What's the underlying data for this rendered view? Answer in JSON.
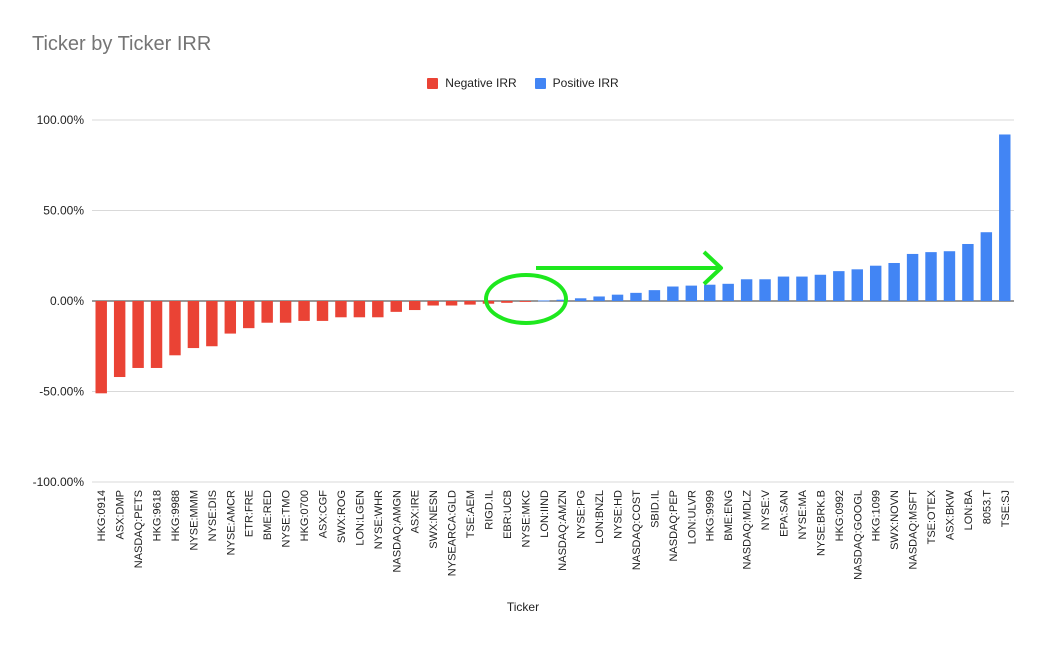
{
  "colors": {
    "negative": "#ea4335",
    "positive": "#4285f4",
    "annotation": "#1ee81e",
    "grid": "#d9d9d9",
    "axis": "#333333"
  },
  "legend": [
    {
      "label": "Negative IRR",
      "color": "#ea4335"
    },
    {
      "label": "Positive IRR",
      "color": "#4285f4"
    }
  ],
  "annotation": {
    "shape": "ellipse-and-arrow",
    "color": "#1ee81e"
  },
  "chart_data": {
    "type": "bar",
    "title": "Ticker by Ticker IRR",
    "xlabel": "Ticker",
    "ylabel": "",
    "ylim": [
      -1.0,
      1.0
    ],
    "yticks": [
      {
        "value": 1.0,
        "label": "100.00%"
      },
      {
        "value": 0.5,
        "label": "50.00%"
      },
      {
        "value": 0.0,
        "label": "0.00%"
      },
      {
        "value": -0.5,
        "label": "-50.00%"
      },
      {
        "value": -1.0,
        "label": "-100.00%"
      }
    ],
    "grid": true,
    "legend_position": "top",
    "categories": [
      "HKG:0914",
      "ASX:DMP",
      "NASDAQ:PETS",
      "HKG:9618",
      "HKG:9988",
      "NYSE:MMM",
      "NYSE:DIS",
      "NYSE:AMCR",
      "ETR:FRE",
      "BME:RED",
      "NYSE:TMO",
      "HKG:0700",
      "ASX:CGF",
      "SWX:ROG",
      "LON:LGEN",
      "NYSE:WHR",
      "NASDAQ:AMGN",
      "ASX:IRE",
      "SWX:NESN",
      "NYSEARCA:GLD",
      "TSE:AEM",
      "RIGD.IL",
      "EBR:UCB",
      "NYSE:MKC",
      "LON:IIND",
      "NASDAQ:AMZN",
      "NYSE:PG",
      "LON:BNZL",
      "NYSE:HD",
      "NASDAQ:COST",
      "SBID.IL",
      "NASDAQ:PEP",
      "LON:ULVR",
      "HKG:9999",
      "BME:ENG",
      "NASDAQ:MDLZ",
      "NYSE:V",
      "EPA:SAN",
      "NYSE:MA",
      "NYSE:BRK.B",
      "HKG:0992",
      "NASDAQ:GOOGL",
      "HKG:1099",
      "SWX:NOVN",
      "NASDAQ:MSFT",
      "TSE:OTEX",
      "ASX:BKW",
      "LON:BA",
      "8053.T",
      "TSE:SJ"
    ],
    "series": [
      {
        "name": "Negative IRR",
        "values": [
          -0.51,
          -0.42,
          -0.37,
          -0.37,
          -0.3,
          -0.26,
          -0.25,
          -0.18,
          -0.15,
          -0.12,
          -0.12,
          -0.11,
          -0.11,
          -0.09,
          -0.09,
          -0.09,
          -0.06,
          -0.05,
          -0.025,
          -0.025,
          -0.02,
          -0.015,
          -0.01,
          -0.005,
          null,
          null,
          null,
          null,
          null,
          null,
          null,
          null,
          null,
          null,
          null,
          null,
          null,
          null,
          null,
          null,
          null,
          null,
          null,
          null,
          null,
          null,
          null,
          null,
          null,
          null
        ]
      },
      {
        "name": "Positive IRR",
        "values": [
          null,
          null,
          null,
          null,
          null,
          null,
          null,
          null,
          null,
          null,
          null,
          null,
          null,
          null,
          null,
          null,
          null,
          null,
          null,
          null,
          null,
          null,
          null,
          null,
          0.003,
          0.007,
          0.015,
          0.025,
          0.035,
          0.045,
          0.06,
          0.08,
          0.085,
          0.09,
          0.095,
          0.12,
          0.12,
          0.135,
          0.135,
          0.145,
          0.165,
          0.175,
          0.195,
          0.21,
          0.26,
          0.27,
          0.275,
          0.315,
          0.38,
          0.92
        ]
      }
    ]
  }
}
